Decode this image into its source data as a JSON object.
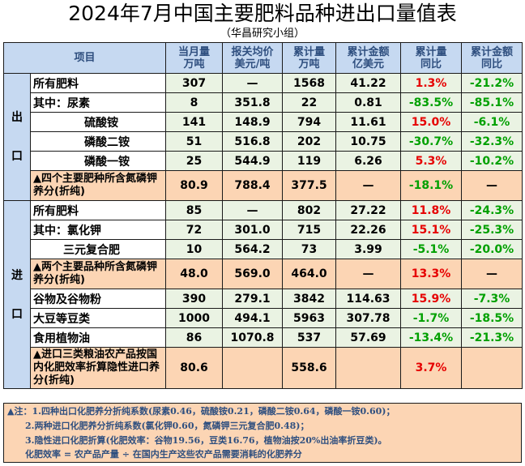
{
  "title": "2024年7月中国主要肥料品种进出口量值表",
  "subtitle": "（华昌研究小组）",
  "header": {
    "item": "项目",
    "monthly_qty": [
      "当月量",
      "万吨"
    ],
    "avg_price": [
      "报关均价",
      "美元/吨"
    ],
    "cum_qty": [
      "累计量",
      "万吨"
    ],
    "cum_value": [
      "累计金额",
      "亿美元"
    ],
    "cum_qty_yoy": [
      "累计量",
      "同比"
    ],
    "cum_value_yoy": [
      "累计金额",
      "同比"
    ]
  },
  "export": {
    "group_label": [
      "出",
      "口"
    ],
    "rows": [
      {
        "name": "所有肥料",
        "monthly_qty": "307",
        "avg_price": "—",
        "cum_qty": "1568",
        "cum_value": "41.22",
        "qty_yoy": "1.3%",
        "value_yoy": "-21.2%"
      },
      {
        "name": "其中：尿素",
        "monthly_qty": "8",
        "avg_price": "351.8",
        "cum_qty": "22",
        "cum_value": "0.81",
        "qty_yoy": "-83.5%",
        "value_yoy": "-85.1%"
      },
      {
        "name": "硫酸铵",
        "monthly_qty": "141",
        "avg_price": "148.9",
        "cum_qty": "794",
        "cum_value": "11.61",
        "qty_yoy": "15.0%",
        "value_yoy": "-6.1%"
      },
      {
        "name": "磷酸二铵",
        "monthly_qty": "51",
        "avg_price": "516.8",
        "cum_qty": "202",
        "cum_value": "10.75",
        "qty_yoy": "-30.7%",
        "value_yoy": "-32.3%"
      },
      {
        "name": "磷酸一铵",
        "monthly_qty": "25",
        "avg_price": "544.9",
        "cum_qty": "119",
        "cum_value": "6.26",
        "qty_yoy": "5.3%",
        "value_yoy": "-10.2%"
      }
    ],
    "summary": {
      "name": "▲四个主要肥种所含氮磷钾养分(折纯)",
      "monthly_qty": "80.9",
      "avg_price": "788.4",
      "cum_qty": "377.5",
      "cum_value": "—",
      "qty_yoy": "-18.1%",
      "value_yoy": "—"
    }
  },
  "import": {
    "group_label": [
      "进",
      "口"
    ],
    "rows_a": [
      {
        "name": "所有肥料",
        "monthly_qty": "85",
        "avg_price": "—",
        "cum_qty": "802",
        "cum_value": "27.22",
        "qty_yoy": "11.8%",
        "value_yoy": "-24.3%"
      },
      {
        "name": "其中：氯化钾",
        "monthly_qty": "72",
        "avg_price": "301.0",
        "cum_qty": "715",
        "cum_value": "22.26",
        "qty_yoy": "15.1%",
        "value_yoy": "-25.3%"
      },
      {
        "name": "三元复合肥",
        "monthly_qty": "10",
        "avg_price": "564.2",
        "cum_qty": "73",
        "cum_value": "3.99",
        "qty_yoy": "-5.1%",
        "value_yoy": "-20.0%"
      }
    ],
    "summary_a": {
      "name": "▲两个主要品种所含氮磷钾养分(折纯)",
      "monthly_qty": "48.0",
      "avg_price": "569.0",
      "cum_qty": "464.0",
      "cum_value": "—",
      "qty_yoy": "13.3%",
      "value_yoy": "—"
    },
    "rows_b": [
      {
        "name": "谷物及谷物粉",
        "monthly_qty": "390",
        "avg_price": "279.1",
        "cum_qty": "3842",
        "cum_value": "114.63",
        "qty_yoy": "15.9%",
        "value_yoy": "-7.3%"
      },
      {
        "name": "大豆等豆类",
        "monthly_qty": "1000",
        "avg_price": "494.1",
        "cum_qty": "5963",
        "cum_value": "307.78",
        "qty_yoy": "-1.7%",
        "value_yoy": "-18.5%"
      },
      {
        "name": "食用植物油",
        "monthly_qty": "86",
        "avg_price": "1070.8",
        "cum_qty": "537",
        "cum_value": "57.69",
        "qty_yoy": "-13.4%",
        "value_yoy": "-21.3%"
      }
    ],
    "summary_b": {
      "name": "▲进口三类粮油农产品按国内化肥效率折算隐性进口养分(折纯)",
      "monthly_qty": "80.6",
      "avg_price": "",
      "cum_qty": "558.6",
      "cum_value": "",
      "qty_yoy": "3.7%",
      "value_yoy": ""
    }
  },
  "notes": [
    "▲注：1.四种出口化肥养分折纯系数(尿素0.46，硫酸铵0.21，磷酸二铵0.64，磷酸一铵0.60)；",
    "2.两种进口化肥养分折纯系数(氯化钾0.60，氮磷钾三元复合肥0.48)；",
    "3.隐性进口化肥折算(化肥效率：谷物19.56，豆类16.76，植物油按20%出油率折豆类)。",
    "化肥效率 = 农产品产量 ÷ 在国内生产这些农产品需要消耗的化肥养分"
  ],
  "colors": {
    "header_bg": "#c6d9f1",
    "value_bg": "#eaf3e3",
    "summary_bg": "#fcd5b4",
    "positive": "#e60000",
    "negative": "#00a000"
  }
}
